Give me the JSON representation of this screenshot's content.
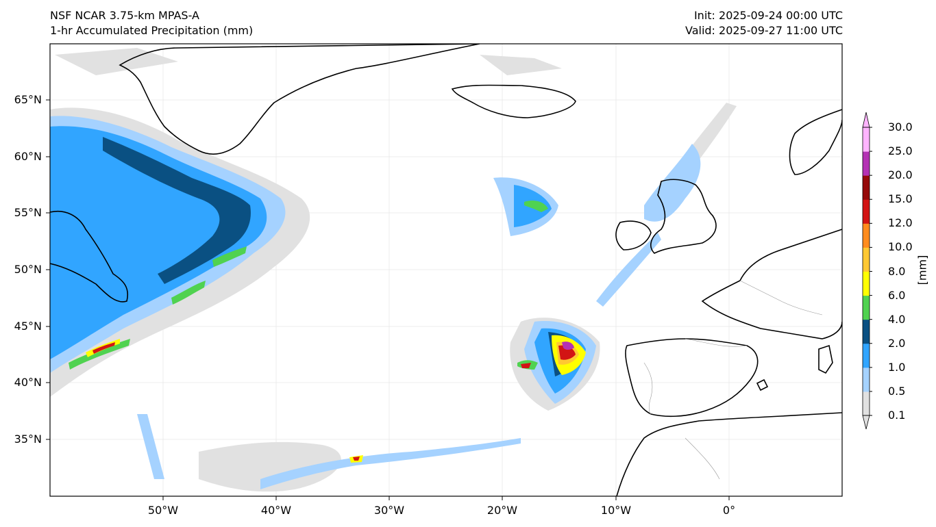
{
  "header": {
    "model": "NSF NCAR 3.75-km MPAS-A",
    "field": "1-hr Accumulated Precipitation (mm)",
    "init": "Init: 2025-09-24 00:00 UTC",
    "valid": "Valid: 2025-09-27 11:00 UTC"
  },
  "map": {
    "lon_range": [
      -60,
      10
    ],
    "lat_range": [
      30,
      70
    ],
    "lat_ticks": [
      {
        "value": 65,
        "label": "65°N"
      },
      {
        "value": 60,
        "label": "60°N"
      },
      {
        "value": 55,
        "label": "55°N"
      },
      {
        "value": 50,
        "label": "50°N"
      },
      {
        "value": 45,
        "label": "45°N"
      },
      {
        "value": 40,
        "label": "40°N"
      },
      {
        "value": 35,
        "label": "35°N"
      }
    ],
    "lon_ticks": [
      {
        "value": -50,
        "label": "50°W"
      },
      {
        "value": -40,
        "label": "40°W"
      },
      {
        "value": -30,
        "label": "30°W"
      },
      {
        "value": -20,
        "label": "20°W"
      },
      {
        "value": -10,
        "label": "10°W"
      },
      {
        "value": 0,
        "label": "0°"
      }
    ]
  },
  "colorbar": {
    "unit": "[mm]",
    "levels": [
      "0.1",
      "0.5",
      "1.0",
      "2.0",
      "4.0",
      "6.0",
      "8.0",
      "10.0",
      "12.0",
      "15.0",
      "20.0",
      "25.0",
      "30.0"
    ],
    "colors": [
      "#e1e1e1",
      "#a5d2ff",
      "#31a5ff",
      "#0a5082",
      "#50d250",
      "#ffff00",
      "#ffc832",
      "#ff8c1e",
      "#d21414",
      "#960a0a",
      "#b432b4",
      "#ffb4ff"
    ]
  }
}
